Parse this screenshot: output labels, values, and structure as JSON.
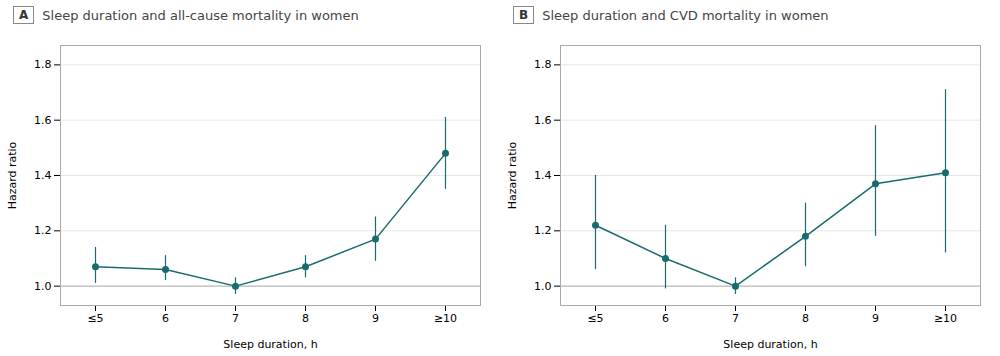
{
  "chart_data": [
    {
      "type": "line",
      "title": "Sleep duration and all-cause mortality in women",
      "annotations": [
        {
          "type": "panel_label",
          "text": "A"
        },
        {
          "type": "hline",
          "y": 1.0,
          "color": "#b0b0b0"
        }
      ],
      "x_label": "Sleep duration, h",
      "y_label": "Hazard ratio",
      "categories": [
        "≤5",
        "6",
        "7",
        "8",
        "9",
        "≥10"
      ],
      "series": [
        {
          "color": "#1a6b6e",
          "marker": "o",
          "values": [
            1.07,
            1.06,
            1.0,
            1.07,
            1.17,
            1.48
          ],
          "lower": [
            1.01,
            1.02,
            0.97,
            1.03,
            1.09,
            1.35
          ],
          "upper": [
            1.14,
            1.11,
            1.03,
            1.11,
            1.25,
            1.61
          ]
        }
      ],
      "ylim": [
        0.93,
        1.87
      ],
      "yticks": [
        {
          "value": 1.0,
          "label": "1.0"
        },
        {
          "value": 1.2,
          "label": "1.2"
        },
        {
          "value": 1.4,
          "label": "1.4"
        },
        {
          "value": 1.6,
          "label": "1.6"
        },
        {
          "value": 1.8,
          "label": "1.8"
        }
      ],
      "grid": true
    },
    {
      "type": "line",
      "title": "Sleep duration and CVD mortality in women",
      "annotations": [
        {
          "type": "panel_label",
          "text": "B"
        },
        {
          "type": "hline",
          "y": 1.0,
          "color": "#b0b0b0"
        }
      ],
      "x_label": "Sleep duration, h",
      "y_label": "Hazard ratio",
      "categories": [
        "≤5",
        "6",
        "7",
        "8",
        "9",
        "≥10"
      ],
      "series": [
        {
          "color": "#1a6b6e",
          "marker": "o",
          "values": [
            1.22,
            1.1,
            1.0,
            1.18,
            1.37,
            1.41
          ],
          "lower": [
            1.06,
            0.99,
            0.97,
            1.07,
            1.18,
            1.12
          ],
          "upper": [
            1.4,
            1.22,
            1.03,
            1.3,
            1.58,
            1.71
          ]
        }
      ],
      "ylim": [
        0.93,
        1.87
      ],
      "yticks": [
        {
          "value": 1.0,
          "label": "1.0"
        },
        {
          "value": 1.2,
          "label": "1.2"
        },
        {
          "value": 1.4,
          "label": "1.4"
        },
        {
          "value": 1.6,
          "label": "1.6"
        },
        {
          "value": 1.8,
          "label": "1.8"
        }
      ],
      "grid": true
    }
  ]
}
